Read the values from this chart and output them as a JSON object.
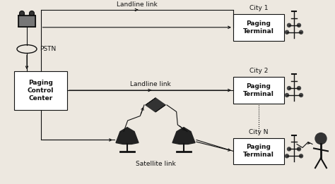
{
  "bg_color": "#ede8e0",
  "box_color": "white",
  "line_color": "#111111",
  "text_color": "#111111",
  "pcc_label": "Paging\nControl\nCenter",
  "pstn_label": "PSTN",
  "city1_label": "Paging\nTerminal",
  "city1_title": "City 1",
  "city2_label": "Paging\nTerminal",
  "city2_title": "City 2",
  "cityN_label": "Paging\nTerminal",
  "cityN_title": "City N",
  "landline1_label": "Landline link",
  "landline2_label": "Landline link",
  "satellite_label": "Satellite link",
  "font_size": 6.5
}
